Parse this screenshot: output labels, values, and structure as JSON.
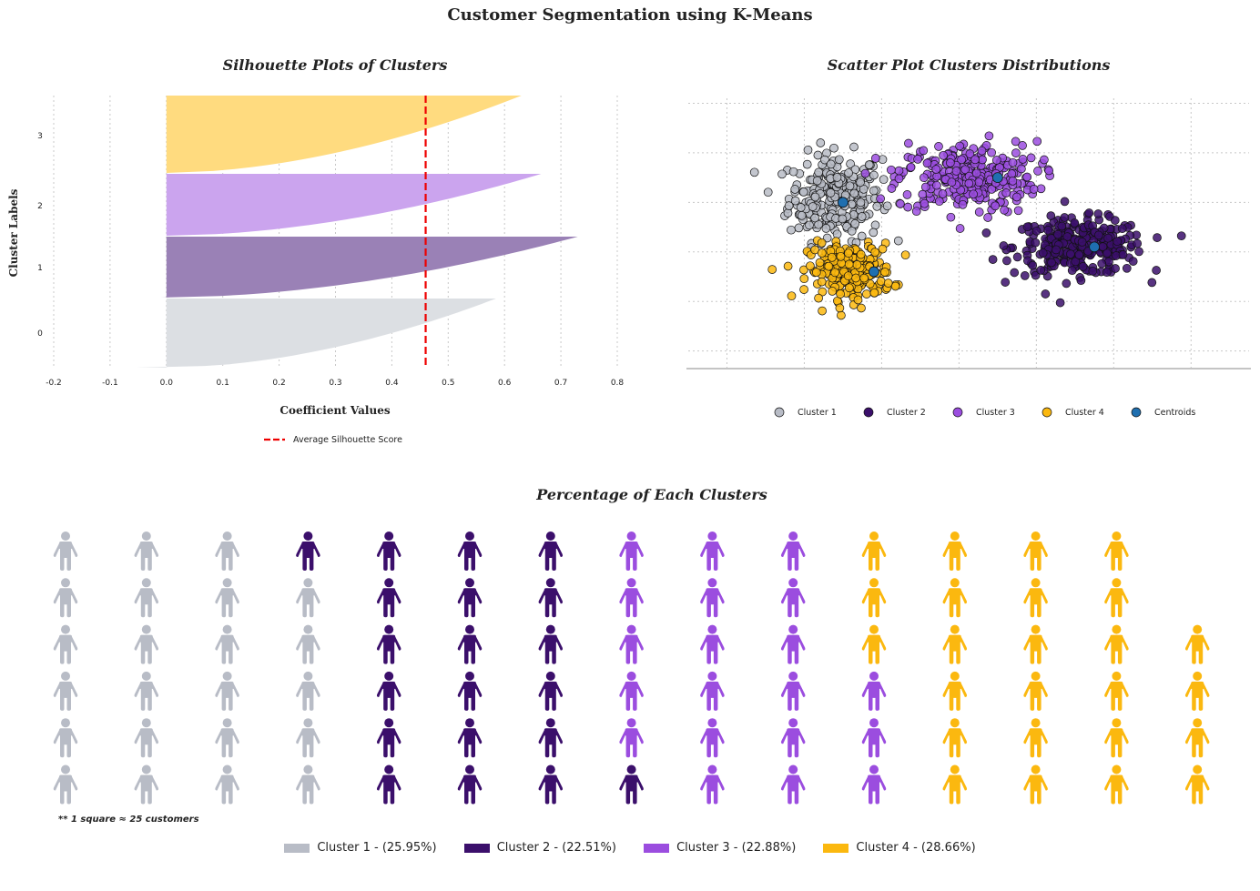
{
  "title": "Customer Segmentation using K-Means",
  "colors": {
    "cluster1": "#b8bcc6",
    "cluster2": "#3b0f6b",
    "cluster3": "#9b4ddf",
    "cluster4": "#fbb80f",
    "centroid": "#1f6fb0",
    "avg_line": "#ee0000"
  },
  "chart_data": [
    {
      "type": "bar",
      "subtype": "silhouette",
      "title": "Silhouette Plots of Clusters",
      "xlabel": "Coefficient Values",
      "ylabel": "Cluster Labels",
      "xlim": [
        -0.2,
        0.8
      ],
      "xticks": [
        "-0.2",
        "-0.1",
        "0.0",
        "0.1",
        "0.2",
        "0.3",
        "0.4",
        "0.5",
        "0.6",
        "0.7",
        "0.8"
      ],
      "yticks": [
        "0",
        "1",
        "2",
        "3"
      ],
      "average_silhouette_score": 0.46,
      "legend": [
        "Average Silhouette Score"
      ],
      "legend_position": "bottom",
      "grid": true,
      "clusters": [
        {
          "label": "0",
          "color": "#dcdfe3",
          "max": 0.585,
          "min": -0.055
        },
        {
          "label": "1",
          "color": "#9a81b6",
          "max": 0.73,
          "min": -0.01
        },
        {
          "label": "2",
          "color": "#cba4ee",
          "max": 0.665,
          "min": 0.0
        },
        {
          "label": "3",
          "color": "#ffdb7f",
          "max": 0.63,
          "min": 0.0
        }
      ]
    },
    {
      "type": "scatter",
      "title": "Scatter Plot Clusters Distributions",
      "xlim": [
        -5,
        9.5
      ],
      "ylim": [
        -2.8,
        2.6
      ],
      "grid": true,
      "legend": [
        "Cluster 1",
        "Cluster 2",
        "Cluster 3",
        "Cluster 4",
        "Centroids"
      ],
      "legend_position": "bottom",
      "series": [
        {
          "name": "Cluster 1",
          "color": "#b8bcc6",
          "center": [
            -1.2,
            0.6
          ],
          "spread": [
            1.0,
            0.55
          ],
          "n": 260
        },
        {
          "name": "Cluster 2",
          "color": "#3b0f6b",
          "center": [
            5.1,
            -0.4
          ],
          "spread": [
            1.4,
            0.35
          ],
          "n": 300
        },
        {
          "name": "Cluster 3",
          "color": "#9b4ddf",
          "center": [
            2.2,
            1.0
          ],
          "spread": [
            1.5,
            0.45
          ],
          "n": 280
        },
        {
          "name": "Cluster 4",
          "color": "#fbb80f",
          "center": [
            -0.8,
            -0.9
          ],
          "spread": [
            0.9,
            0.35
          ],
          "n": 240
        }
      ],
      "centroids": [
        [
          -1.0,
          0.5
        ],
        [
          3.0,
          1.0
        ],
        [
          -0.2,
          -0.9
        ],
        [
          5.5,
          -0.4
        ]
      ]
    },
    {
      "type": "waffle",
      "title": "Percentage of Each Clusters",
      "rows": 6,
      "columns": 15,
      "note": "** 1 square ≈ 25 customers",
      "categories": [
        {
          "label": "Cluster 1 - (25.95%)",
          "count": 23,
          "color": "#b8bcc6"
        },
        {
          "label": "Cluster 2 - (22.51%)",
          "count": 20,
          "color": "#3b0f6b"
        },
        {
          "label": "Cluster 3 - (22.88%)",
          "count": 20,
          "color": "#9b4ddf"
        },
        {
          "label": "Cluster 4 - (28.66%)",
          "count": 25,
          "color": "#fbb80f"
        }
      ]
    }
  ]
}
